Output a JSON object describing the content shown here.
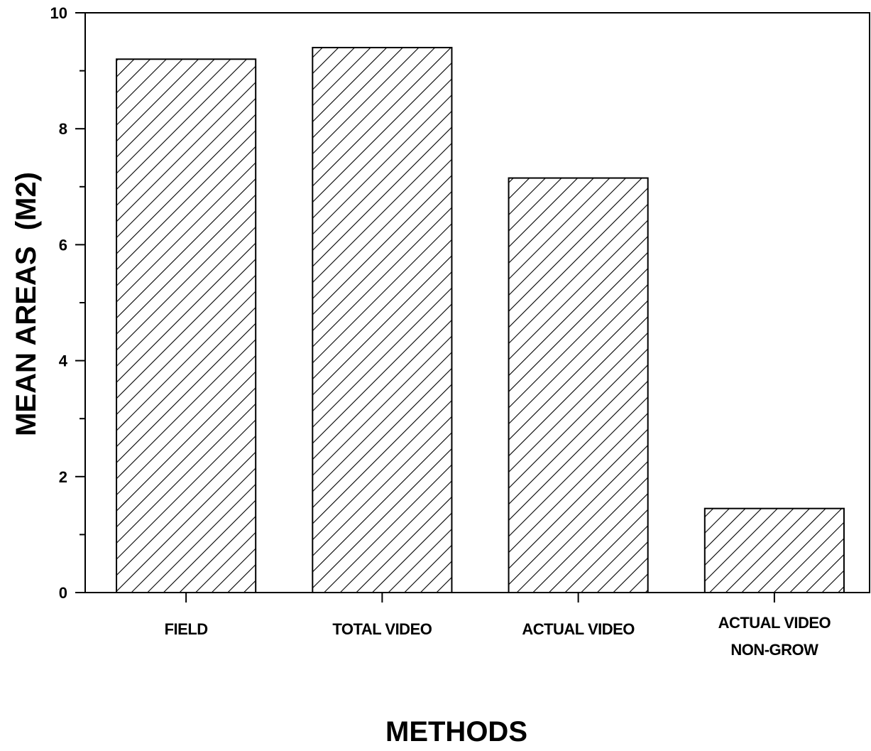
{
  "chart_data": {
    "type": "bar",
    "title": "",
    "xlabel": "METHODS",
    "ylabel": "MEAN AREAS  (M2)",
    "categories": [
      [
        "FIELD"
      ],
      [
        "TOTAL VIDEO"
      ],
      [
        "ACTUAL VIDEO"
      ],
      [
        "ACTUAL VIDEO",
        "NON-GROW"
      ]
    ],
    "values": [
      9.2,
      9.4,
      7.15,
      1.45
    ],
    "ylim": [
      0,
      10
    ],
    "yticks": [
      0,
      2,
      4,
      6,
      8,
      10
    ],
    "y_minor_step": 1,
    "grid": false,
    "legend": "none",
    "bar_fill": "diagonal hatch",
    "colors": {
      "bar_stroke": "#000000",
      "hatch": "#000000",
      "background": "#ffffff"
    }
  }
}
